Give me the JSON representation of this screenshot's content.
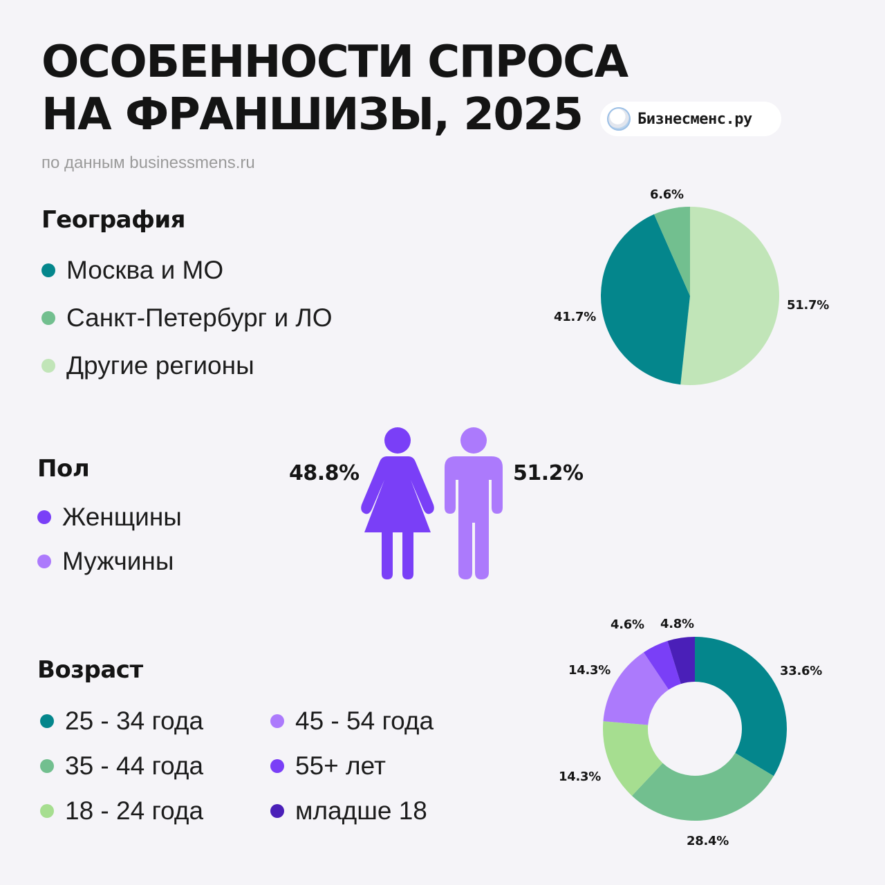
{
  "header": {
    "title_line1": "ОСОБЕННОСТИ СПРОСА",
    "title_line2": "НА ФРАНШИЗЫ, 2025",
    "subtitle": "по данным businessmens.ru",
    "brand": "Бизнесменс.ру"
  },
  "geography": {
    "title": "География",
    "items": [
      {
        "label": "Москва и МО",
        "color": "#04868c"
      },
      {
        "label": "Санкт-Петербург и ЛО",
        "color": "#72bf8f"
      },
      {
        "label": "Другие регионы",
        "color": "#c1e5b8"
      }
    ]
  },
  "gender": {
    "title": "Пол",
    "items": [
      {
        "label": "Женщины",
        "color": "#7a3ff7"
      },
      {
        "label": "Мужчины",
        "color": "#ac7afc"
      }
    ],
    "female_value": "48.8%",
    "male_value": "51.2%"
  },
  "age": {
    "title": "Возраст",
    "items": [
      {
        "label": "25 - 34 года",
        "color": "#04868c"
      },
      {
        "label": "35 - 44 года",
        "color": "#72bf8f"
      },
      {
        "label": "18 - 24 года",
        "color": "#a6de90"
      },
      {
        "label": "45 - 54 года",
        "color": "#ac7afc"
      },
      {
        "label": "55+ лет",
        "color": "#7a3ff7"
      },
      {
        "label": "младше 18",
        "color": "#4a1fb8"
      }
    ]
  },
  "chart_data": [
    {
      "type": "pie",
      "title": "География",
      "labels": [
        "Другие регионы",
        "Москва и МО",
        "Санкт-Петербург и ЛО"
      ],
      "values": [
        51.7,
        41.7,
        6.6
      ],
      "value_labels": [
        "51.7%",
        "41.7%",
        "6.6%"
      ],
      "colors": [
        "#c1e5b8",
        "#04868c",
        "#72bf8f"
      ]
    },
    {
      "type": "pie",
      "title": "Пол",
      "labels": [
        "Женщины",
        "Мужчины"
      ],
      "values": [
        48.8,
        51.2
      ],
      "colors": [
        "#7a3ff7",
        "#ac7afc"
      ]
    },
    {
      "type": "pie",
      "variant": "donut",
      "title": "Возраст",
      "labels": [
        "25 - 34 года",
        "35 - 44 года",
        "18 - 24 года",
        "45 - 54 года",
        "55+ лет",
        "младше 18"
      ],
      "values": [
        33.6,
        28.4,
        14.3,
        14.3,
        4.6,
        4.8
      ],
      "value_labels": [
        "33.6%",
        "28.4%",
        "14.3%",
        "14.3%",
        "4.6%",
        "4.8%"
      ],
      "colors": [
        "#04868c",
        "#72bf8f",
        "#a6de90",
        "#ac7afc",
        "#7a3ff7",
        "#4a1fb8"
      ]
    }
  ]
}
